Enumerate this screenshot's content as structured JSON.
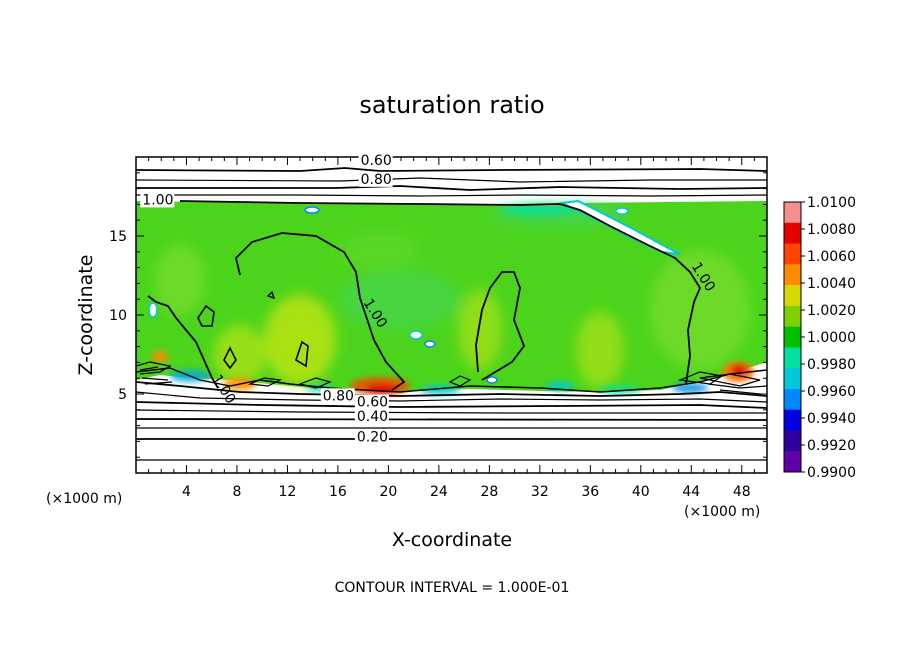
{
  "chart_data": {
    "type": "heatmap",
    "title": "saturation ratio",
    "xlabel": "X-coordinate",
    "ylabel": "Z-coordinate",
    "x_units": "(×1000 m)",
    "x_ticks": [
      4,
      8,
      12,
      16,
      20,
      24,
      28,
      32,
      36,
      40,
      44,
      48
    ],
    "y_ticks": [
      5,
      10,
      15
    ],
    "xlim": [
      0,
      50
    ],
    "ylim": [
      0,
      20
    ],
    "colorbar": {
      "ticks": [
        "1.0100",
        "1.0080",
        "1.0060",
        "1.0040",
        "1.0020",
        "1.0000",
        "0.9980",
        "0.9960",
        "0.9940",
        "0.9920",
        "0.9900"
      ],
      "colors": [
        "#f58e8e",
        "#e60000",
        "#ff4500",
        "#ff8c00",
        "#d8d800",
        "#7fd000",
        "#00c000",
        "#00e0a0",
        "#00c8d8",
        "#0088ff",
        "#0000e0",
        "#3000a0",
        "#6000a8"
      ]
    },
    "contour_labels": [
      {
        "text": "0.60",
        "x": 17.8,
        "z": 19.5
      },
      {
        "text": "0.80",
        "x": 17.8,
        "z": 18.3
      },
      {
        "text": "1.00",
        "x": 0.5,
        "z": 17.0
      },
      {
        "text": "1.00",
        "x": 44.0,
        "z": 13.1
      },
      {
        "text": "1.00",
        "x": 18.0,
        "z": 10.8
      },
      {
        "text": "1.00",
        "x": 6.0,
        "z": 6.0
      },
      {
        "text": "0.80",
        "x": 14.8,
        "z": 4.6
      },
      {
        "text": "0.60",
        "x": 17.5,
        "z": 4.2
      },
      {
        "text": "0.40",
        "x": 17.5,
        "z": 3.3
      },
      {
        "text": "0.20",
        "x": 17.5,
        "z": 2.0
      }
    ],
    "footer": "CONTOUR INTERVAL = 1.000E-01"
  }
}
